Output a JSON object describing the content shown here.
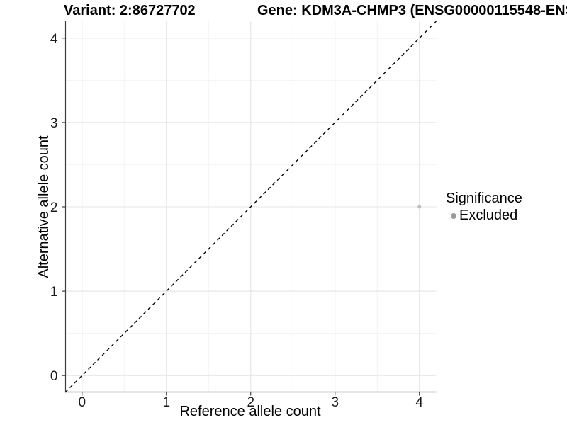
{
  "titles": {
    "variant": "Variant: 2:86727702",
    "gene": "Gene: KDM3A-CHMP3 (ENSG00000115548-ENS"
  },
  "legend": {
    "title": "Significance",
    "items": [
      {
        "label": "Excluded",
        "color": "#9b9b9b"
      }
    ]
  },
  "chart_data": {
    "type": "scatter",
    "title_left": "Variant: 2:86727702",
    "title_right": "Gene: KDM3A-CHMP3 (ENSG00000115548-ENS",
    "xlabel": "Reference allele count",
    "ylabel": "Alternative allele count",
    "xlim": [
      -0.2,
      4.2
    ],
    "ylim": [
      -0.2,
      4.2
    ],
    "x_ticks": [
      0,
      1,
      2,
      3,
      4
    ],
    "y_ticks": [
      0,
      1,
      2,
      3,
      4
    ],
    "x_minor_ticks": [
      0.5,
      1.5,
      2.5,
      3.5
    ],
    "y_minor_ticks": [
      0.5,
      1.5,
      2.5,
      3.5
    ],
    "grid": "major and minor gridlines on white panel",
    "legend_position": "right",
    "legend_title": "Significance",
    "series": [
      {
        "name": "Excluded",
        "color": "#bdbdbd",
        "marker": "circle",
        "marker_diameter_px": 5,
        "points": [
          {
            "x": 4,
            "y": 2
          }
        ]
      }
    ],
    "reference_line": {
      "type": "identity y=x",
      "style": "dashed",
      "color": "#000000",
      "from": [
        -0.2,
        -0.2
      ],
      "to": [
        4.2,
        4.2
      ]
    }
  },
  "colors": {
    "background": "#ffffff",
    "grid_major": "#e4e4e4",
    "grid_minor": "#f2f2f2",
    "axis_line": "#3d3d3d",
    "tick_mark": "#333333",
    "tick_label": "#1a1a1a",
    "point": "#bdbdbd",
    "legend_point": "#9b9b9b"
  }
}
